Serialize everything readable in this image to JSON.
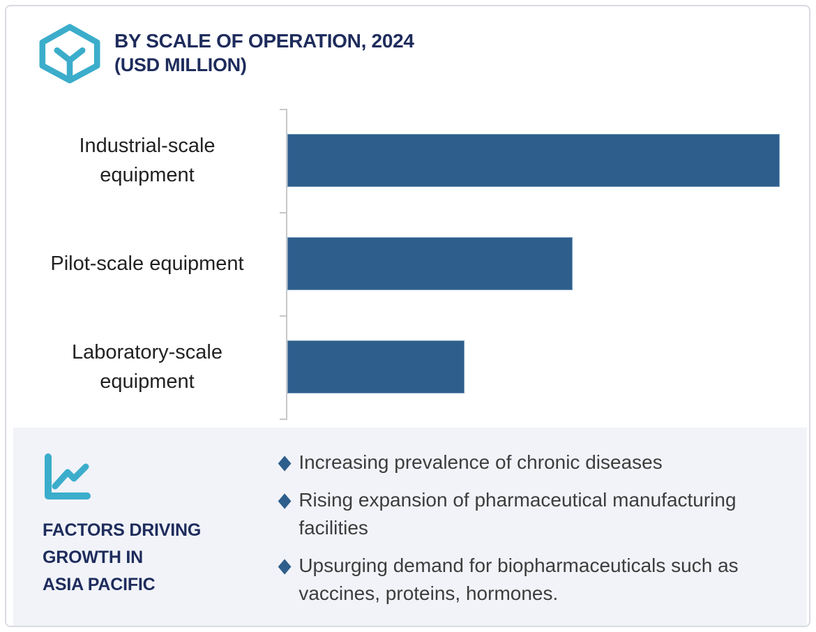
{
  "header": {
    "title_line1": "BY SCALE OF OPERATION, 2024",
    "title_line2": "(USD MILLION)",
    "icon": "hexagon-y-icon"
  },
  "chart_data": {
    "type": "bar",
    "orientation": "horizontal",
    "title": "BY SCALE OF OPERATION, 2024 (USD MILLION)",
    "categories": [
      "Industrial-scale equipment",
      "Pilot-scale equipment",
      "Laboratory-scale equipment"
    ],
    "values_relative_pct": [
      100,
      58,
      36
    ],
    "value_axis_shown": false,
    "value_labels_shown": false,
    "xlabel": "",
    "ylabel": "",
    "grid": false,
    "legend": false,
    "bar_color": "#2e5e8c",
    "axis_color": "#c7c7c9"
  },
  "factors": {
    "icon": "line-chart-icon",
    "heading": "FACTORS DRIVING\nGROWTH IN\nASIA PACIFIC",
    "bullet_glyph": "◆",
    "bullets": [
      "Increasing prevalence of chronic diseases",
      "Rising expansion of pharmaceutical manufacturing facilities",
      "Upsurging demand for biopharmaceuticals such as vaccines, proteins, hormones."
    ],
    "panel_bg": "#f1f3f8"
  },
  "colors": {
    "navy_text": "#1e2c5c",
    "bar_blue": "#2e5e8c",
    "teal_accent": "#3badcb",
    "category_text": "#222222",
    "bullet_text": "#3d3d3d",
    "card_border": "#d9dbe1"
  }
}
